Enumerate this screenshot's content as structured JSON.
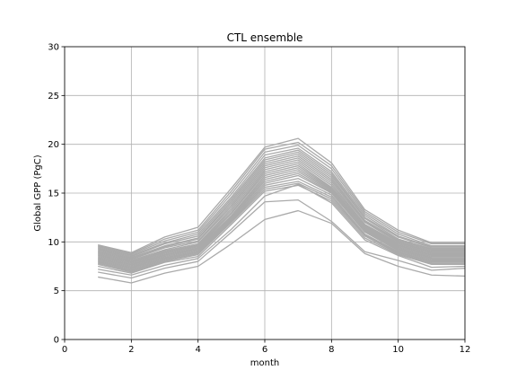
{
  "chart_data": {
    "type": "line",
    "title": "CTL ensemble",
    "xlabel": "month",
    "ylabel": "Global GPP (PgC)",
    "xlim": [
      0,
      12
    ],
    "ylim": [
      0,
      30
    ],
    "xticks": [
      0,
      2,
      4,
      6,
      8,
      10,
      12
    ],
    "yticks": [
      0,
      5,
      10,
      15,
      20,
      25,
      30
    ],
    "grid": true,
    "legend": "none",
    "line_color": "#aaaaaa",
    "x": [
      1,
      2,
      3,
      4,
      5,
      6,
      7,
      8,
      9,
      10,
      11,
      12
    ],
    "series": [
      {
        "values": [
          9.7,
          8.9,
          10.5,
          11.5,
          15.5,
          19.7,
          20.6,
          18.1,
          13.3,
          11.2,
          9.9,
          9.9
        ]
      },
      {
        "values": [
          9.6,
          8.8,
          10.3,
          11.2,
          15.2,
          19.5,
          20.2,
          17.8,
          13.1,
          11.0,
          9.8,
          9.8
        ]
      },
      {
        "values": [
          9.5,
          8.7,
          10.1,
          11.0,
          14.9,
          19.2,
          19.9,
          17.5,
          12.9,
          10.8,
          9.6,
          9.6
        ]
      },
      {
        "values": [
          9.4,
          8.6,
          9.9,
          10.8,
          14.6,
          18.9,
          19.6,
          17.2,
          12.7,
          10.6,
          9.5,
          9.5
        ]
      },
      {
        "values": [
          9.3,
          8.5,
          9.8,
          10.6,
          14.4,
          18.6,
          19.4,
          17.0,
          12.5,
          10.5,
          9.4,
          9.4
        ]
      },
      {
        "values": [
          9.2,
          8.4,
          9.6,
          10.4,
          14.2,
          18.4,
          19.2,
          16.8,
          12.4,
          10.3,
          9.3,
          9.3
        ]
      },
      {
        "values": [
          9.1,
          8.3,
          9.5,
          10.3,
          14.0,
          18.2,
          19.0,
          16.6,
          12.2,
          10.2,
          9.2,
          9.2
        ]
      },
      {
        "values": [
          9.0,
          8.2,
          9.4,
          10.1,
          13.8,
          18.0,
          18.8,
          16.4,
          12.1,
          10.1,
          9.1,
          9.1
        ]
      },
      {
        "values": [
          8.9,
          8.1,
          9.2,
          10.0,
          13.6,
          17.8,
          18.6,
          16.2,
          12.0,
          10.0,
          9.0,
          9.0
        ]
      },
      {
        "values": [
          8.8,
          8.0,
          9.1,
          9.8,
          13.4,
          17.6,
          18.4,
          16.0,
          11.8,
          9.9,
          8.9,
          8.9
        ]
      },
      {
        "values": [
          8.7,
          7.9,
          9.0,
          9.7,
          13.2,
          17.4,
          18.2,
          15.8,
          11.7,
          9.8,
          8.8,
          8.8
        ]
      },
      {
        "values": [
          8.6,
          7.8,
          8.9,
          9.6,
          13.0,
          17.2,
          18.0,
          15.6,
          11.6,
          9.7,
          8.7,
          8.7
        ]
      },
      {
        "values": [
          8.5,
          7.7,
          8.8,
          9.5,
          12.9,
          17.0,
          17.8,
          15.5,
          11.5,
          9.6,
          8.6,
          8.6
        ]
      },
      {
        "values": [
          8.4,
          7.6,
          8.7,
          9.4,
          12.7,
          16.8,
          17.6,
          15.4,
          11.4,
          9.5,
          8.5,
          8.5
        ]
      },
      {
        "values": [
          8.3,
          7.5,
          8.6,
          9.3,
          12.6,
          16.6,
          17.4,
          15.3,
          11.3,
          9.4,
          8.4,
          8.4
        ]
      },
      {
        "values": [
          8.2,
          7.4,
          8.5,
          9.2,
          12.5,
          16.4,
          17.2,
          15.2,
          11.2,
          9.3,
          8.3,
          8.3
        ]
      },
      {
        "values": [
          8.1,
          7.3,
          8.4,
          9.1,
          12.4,
          16.2,
          17.0,
          15.1,
          11.1,
          9.2,
          8.2,
          8.2
        ]
      },
      {
        "values": [
          8.0,
          7.2,
          8.3,
          9.0,
          12.3,
          16.0,
          16.8,
          15.0,
          11.0,
          9.1,
          8.1,
          8.1
        ]
      },
      {
        "values": [
          7.9,
          7.1,
          8.2,
          8.9,
          12.2,
          15.8,
          16.5,
          14.8,
          10.8,
          9.0,
          8.0,
          8.0
        ]
      },
      {
        "values": [
          7.8,
          7.0,
          8.1,
          8.8,
          12.1,
          15.6,
          16.2,
          14.6,
          10.7,
          8.9,
          7.9,
          7.9
        ]
      },
      {
        "values": [
          7.7,
          6.9,
          8.0,
          8.7,
          12.0,
          15.4,
          16.0,
          14.4,
          10.6,
          8.8,
          7.8,
          7.8
        ]
      },
      {
        "values": [
          7.5,
          6.8,
          7.9,
          8.5,
          11.8,
          15.2,
          15.8,
          14.2,
          10.4,
          8.7,
          7.7,
          7.7
        ]
      },
      {
        "values": [
          7.2,
          6.6,
          7.6,
          8.3,
          11.3,
          14.7,
          15.9,
          14.0,
          10.2,
          8.6,
          7.4,
          7.5
        ]
      },
      {
        "values": [
          6.9,
          6.3,
          7.3,
          8.0,
          11.0,
          14.1,
          14.3,
          12.1,
          9.0,
          8.1,
          7.1,
          7.3
        ]
      },
      {
        "values": [
          6.4,
          5.8,
          6.8,
          7.5,
          9.8,
          12.3,
          13.2,
          11.9,
          8.8,
          7.5,
          6.6,
          6.5
        ]
      }
    ]
  }
}
